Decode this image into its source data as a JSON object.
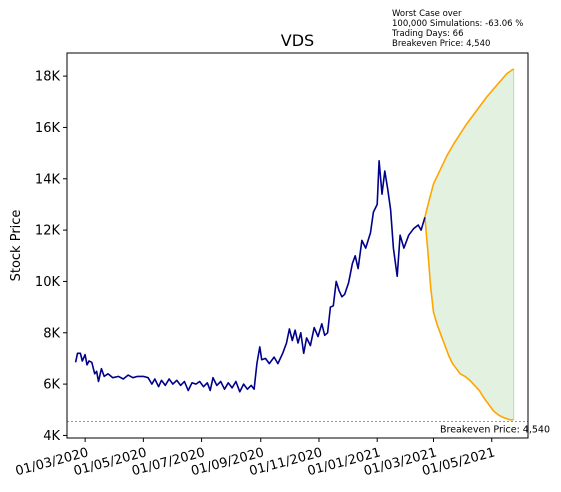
{
  "chart_data": {
    "type": "line",
    "title": "VDS",
    "xlabel": "",
    "ylabel": "Stock Price",
    "ylim": [
      3900,
      18900
    ],
    "xlim": [
      "2020-02-11",
      "2021-06-08"
    ],
    "grid": false,
    "x_tick_labels": [
      "01/03/2020",
      "01/05/2020",
      "01/07/2020",
      "01/09/2020",
      "01/11/2020",
      "01/01/2021",
      "01/03/2021",
      "01/05/2021"
    ],
    "x_tick_dates": [
      "2020-03-01",
      "2020-05-01",
      "2020-07-01",
      "2020-09-01",
      "2020-11-01",
      "2021-01-01",
      "2021-03-01",
      "2021-05-01"
    ],
    "y_ticks": [
      4000,
      6000,
      8000,
      10000,
      12000,
      14000,
      16000,
      18000
    ],
    "y_tick_labels": [
      "4K",
      "6K",
      "8K",
      "10K",
      "12K",
      "14K",
      "16K",
      "18K"
    ],
    "annotation_lines": [
      "Worst Case over",
      "100,000 Simulations: -63.06 %",
      "Trading Days: 66",
      "Breakeven Price: 4,540"
    ],
    "breakeven": {
      "value": 4540,
      "label": "Breakeven Price: 4,540",
      "color": "#d62728"
    },
    "colors": {
      "history": "#00008b",
      "upper": "#ffa500",
      "lower": "#ffa500",
      "band": "#e3f1e1",
      "band_edge": "#b9dbb3"
    },
    "series": [
      {
        "role": "history",
        "points": [
          [
            "2020-02-20",
            6850
          ],
          [
            "2020-02-22",
            7200
          ],
          [
            "2020-02-25",
            7200
          ],
          [
            "2020-02-27",
            6900
          ],
          [
            "2020-03-01",
            7150
          ],
          [
            "2020-03-03",
            6750
          ],
          [
            "2020-03-05",
            6900
          ],
          [
            "2020-03-08",
            6850
          ],
          [
            "2020-03-11",
            6400
          ],
          [
            "2020-03-13",
            6500
          ],
          [
            "2020-03-15",
            6100
          ],
          [
            "2020-03-18",
            6600
          ],
          [
            "2020-03-21",
            6300
          ],
          [
            "2020-03-25",
            6400
          ],
          [
            "2020-03-30",
            6250
          ],
          [
            "2020-04-05",
            6300
          ],
          [
            "2020-04-10",
            6200
          ],
          [
            "2020-04-15",
            6350
          ],
          [
            "2020-04-20",
            6250
          ],
          [
            "2020-04-25",
            6300
          ],
          [
            "2020-05-01",
            6300
          ],
          [
            "2020-05-06",
            6250
          ],
          [
            "2020-05-10",
            6000
          ],
          [
            "2020-05-13",
            6200
          ],
          [
            "2020-05-17",
            5900
          ],
          [
            "2020-05-20",
            6150
          ],
          [
            "2020-05-24",
            5950
          ],
          [
            "2020-05-28",
            6200
          ],
          [
            "2020-06-01",
            6000
          ],
          [
            "2020-06-05",
            6150
          ],
          [
            "2020-06-09",
            5950
          ],
          [
            "2020-06-13",
            6100
          ],
          [
            "2020-06-17",
            5750
          ],
          [
            "2020-06-21",
            6050
          ],
          [
            "2020-06-25",
            6000
          ],
          [
            "2020-06-29",
            6100
          ],
          [
            "2020-07-03",
            5900
          ],
          [
            "2020-07-07",
            6050
          ],
          [
            "2020-07-10",
            5750
          ],
          [
            "2020-07-13",
            6250
          ],
          [
            "2020-07-17",
            5950
          ],
          [
            "2020-07-21",
            6100
          ],
          [
            "2020-07-25",
            5800
          ],
          [
            "2020-07-29",
            6050
          ],
          [
            "2020-08-02",
            5850
          ],
          [
            "2020-08-06",
            6100
          ],
          [
            "2020-08-10",
            5700
          ],
          [
            "2020-08-14",
            6000
          ],
          [
            "2020-08-18",
            5800
          ],
          [
            "2020-08-22",
            5950
          ],
          [
            "2020-08-25",
            5800
          ],
          [
            "2020-08-28",
            6800
          ],
          [
            "2020-08-31",
            7450
          ],
          [
            "2020-09-02",
            6950
          ],
          [
            "2020-09-06",
            7000
          ],
          [
            "2020-09-10",
            6800
          ],
          [
            "2020-09-15",
            7050
          ],
          [
            "2020-09-19",
            6800
          ],
          [
            "2020-09-24",
            7200
          ],
          [
            "2020-09-28",
            7600
          ],
          [
            "2020-10-01",
            8150
          ],
          [
            "2020-10-04",
            7700
          ],
          [
            "2020-10-07",
            8100
          ],
          [
            "2020-10-10",
            7600
          ],
          [
            "2020-10-13",
            8000
          ],
          [
            "2020-10-16",
            7200
          ],
          [
            "2020-10-19",
            7800
          ],
          [
            "2020-10-23",
            7500
          ],
          [
            "2020-10-27",
            8200
          ],
          [
            "2020-10-31",
            7850
          ],
          [
            "2020-11-04",
            8350
          ],
          [
            "2020-11-07",
            7900
          ],
          [
            "2020-11-10",
            8000
          ],
          [
            "2020-11-13",
            9000
          ],
          [
            "2020-11-16",
            9050
          ],
          [
            "2020-11-19",
            10000
          ],
          [
            "2020-11-22",
            9650
          ],
          [
            "2020-11-25",
            9400
          ],
          [
            "2020-11-28",
            9500
          ],
          [
            "2020-12-02",
            9950
          ],
          [
            "2020-12-06",
            10700
          ],
          [
            "2020-12-09",
            11000
          ],
          [
            "2020-12-12",
            10500
          ],
          [
            "2020-12-16",
            11600
          ],
          [
            "2020-12-20",
            11300
          ],
          [
            "2020-12-25",
            11900
          ],
          [
            "2020-12-28",
            12700
          ],
          [
            "2021-01-01",
            13000
          ],
          [
            "2021-01-03",
            14700
          ],
          [
            "2021-01-06",
            13400
          ],
          [
            "2021-01-09",
            14300
          ],
          [
            "2021-01-12",
            13600
          ],
          [
            "2021-01-15",
            12800
          ],
          [
            "2021-01-18",
            11300
          ],
          [
            "2021-01-22",
            10200
          ],
          [
            "2021-01-25",
            11800
          ],
          [
            "2021-01-29",
            11300
          ],
          [
            "2021-02-03",
            11800
          ],
          [
            "2021-02-08",
            12050
          ],
          [
            "2021-02-13",
            12200
          ],
          [
            "2021-02-16",
            12000
          ],
          [
            "2021-02-20",
            12500
          ]
        ]
      },
      {
        "role": "upper",
        "points": [
          [
            "2021-02-20",
            12500
          ],
          [
            "2021-02-24",
            13100
          ],
          [
            "2021-03-01",
            13800
          ],
          [
            "2021-03-08",
            14350
          ],
          [
            "2021-03-15",
            14900
          ],
          [
            "2021-03-22",
            15350
          ],
          [
            "2021-03-29",
            15750
          ],
          [
            "2021-04-05",
            16150
          ],
          [
            "2021-04-12",
            16500
          ],
          [
            "2021-04-19",
            16850
          ],
          [
            "2021-04-26",
            17200
          ],
          [
            "2021-05-03",
            17500
          ],
          [
            "2021-05-10",
            17800
          ],
          [
            "2021-05-17",
            18100
          ],
          [
            "2021-05-24",
            18280
          ]
        ]
      },
      {
        "role": "lower",
        "points": [
          [
            "2021-02-20",
            12500
          ],
          [
            "2021-02-23",
            11200
          ],
          [
            "2021-02-26",
            9800
          ],
          [
            "2021-03-01",
            8800
          ],
          [
            "2021-03-05",
            8300
          ],
          [
            "2021-03-09",
            7900
          ],
          [
            "2021-03-13",
            7500
          ],
          [
            "2021-03-17",
            7100
          ],
          [
            "2021-03-21",
            6800
          ],
          [
            "2021-03-25",
            6600
          ],
          [
            "2021-03-29",
            6400
          ],
          [
            "2021-04-03",
            6300
          ],
          [
            "2021-04-08",
            6150
          ],
          [
            "2021-04-13",
            5950
          ],
          [
            "2021-04-18",
            5750
          ],
          [
            "2021-04-23",
            5450
          ],
          [
            "2021-04-28",
            5200
          ],
          [
            "2021-05-03",
            4950
          ],
          [
            "2021-05-08",
            4800
          ],
          [
            "2021-05-13",
            4700
          ],
          [
            "2021-05-17",
            4650
          ],
          [
            "2021-05-21",
            4600
          ],
          [
            "2021-05-24",
            4620
          ]
        ]
      }
    ]
  }
}
